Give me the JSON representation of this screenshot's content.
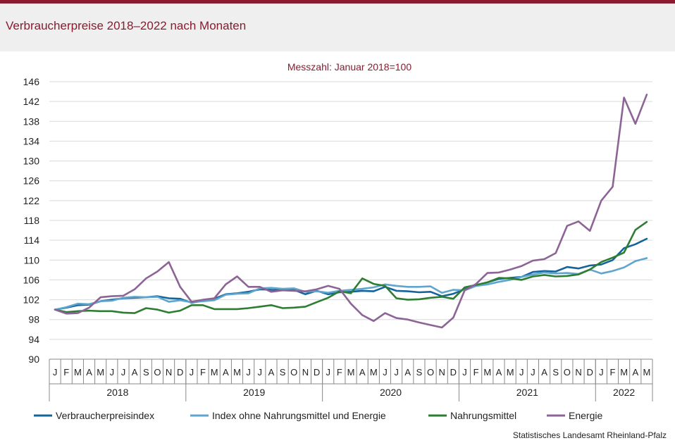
{
  "header": {
    "title": "Verbraucherpreise 2018–2022 nach Monaten"
  },
  "source": "Statistisches Landesamt Rheinland-Pfalz",
  "chart_data": {
    "type": "line",
    "subtitle": "Messzahl: Januar 2018=100",
    "ylim": [
      90,
      146
    ],
    "yticks": [
      "146",
      "142",
      "138",
      "134",
      "130",
      "126",
      "122",
      "118",
      "114",
      "110",
      "106",
      "102",
      "98",
      "94",
      "90"
    ],
    "month_letters": [
      "J",
      "F",
      "M",
      "A",
      "M",
      "J",
      "J",
      "A",
      "S",
      "O",
      "N",
      "D"
    ],
    "years": [
      {
        "label": "2018",
        "months": 12
      },
      {
        "label": "2019",
        "months": 12
      },
      {
        "label": "2020",
        "months": 12
      },
      {
        "label": "2021",
        "months": 12
      },
      {
        "label": "2022",
        "months": 5
      }
    ],
    "grid": true,
    "legend": "bottom",
    "series": [
      {
        "name": "Verbraucherpreisindex",
        "color": "#14649b",
        "values": [
          100.0,
          100.4,
          100.9,
          101.0,
          101.7,
          102.0,
          102.3,
          102.4,
          102.5,
          102.7,
          102.3,
          102.2,
          101.4,
          101.8,
          102.2,
          103.1,
          103.3,
          103.6,
          104.1,
          104.0,
          103.9,
          104.0,
          103.1,
          103.8,
          103.1,
          103.5,
          103.6,
          103.8,
          103.7,
          104.6,
          103.8,
          103.7,
          103.5,
          103.6,
          102.7,
          103.2,
          104.1,
          104.9,
          105.5,
          106.2,
          106.4,
          106.6,
          107.6,
          107.8,
          107.7,
          108.6,
          108.3,
          108.9,
          109.1,
          110.0,
          112.4,
          113.2,
          114.3
        ]
      },
      {
        "name": "Index ohne Nahrungsmittel und Energie",
        "color": "#5fa5cd",
        "values": [
          100.0,
          100.5,
          101.2,
          101.1,
          101.7,
          101.8,
          102.4,
          102.6,
          102.5,
          102.6,
          101.6,
          101.9,
          101.5,
          101.7,
          101.9,
          103.0,
          103.2,
          103.3,
          104.3,
          104.4,
          104.2,
          104.3,
          103.6,
          103.7,
          103.4,
          103.8,
          104.0,
          104.2,
          104.5,
          105.1,
          104.8,
          104.6,
          104.6,
          104.7,
          103.4,
          104.0,
          103.9,
          104.8,
          105.1,
          105.6,
          106.0,
          106.6,
          107.1,
          107.5,
          107.3,
          107.4,
          107.2,
          108.1,
          107.3,
          107.8,
          108.5,
          109.8,
          110.4
        ]
      },
      {
        "name": "Nahrungsmittel",
        "color": "#2d7d32",
        "values": [
          100.0,
          99.5,
          99.7,
          99.8,
          99.7,
          99.7,
          99.4,
          99.3,
          100.3,
          100.0,
          99.4,
          99.8,
          100.9,
          100.9,
          100.1,
          100.1,
          100.1,
          100.3,
          100.6,
          100.9,
          100.3,
          100.4,
          100.6,
          101.5,
          102.4,
          103.7,
          103.3,
          106.3,
          105.2,
          104.8,
          102.3,
          102.0,
          102.1,
          102.4,
          102.6,
          102.2,
          104.5,
          105.0,
          105.5,
          106.4,
          106.3,
          106.0,
          106.7,
          107.0,
          106.7,
          106.8,
          107.1,
          108.1,
          109.6,
          110.5,
          111.5,
          116.1,
          117.7
        ]
      },
      {
        "name": "Energie",
        "color": "#8c6496",
        "values": [
          100.0,
          99.2,
          99.3,
          100.4,
          102.5,
          102.7,
          102.8,
          104.1,
          106.3,
          107.7,
          109.6,
          104.6,
          101.6,
          102.0,
          102.3,
          105.1,
          106.7,
          104.6,
          104.6,
          103.6,
          103.9,
          103.8,
          103.7,
          104.1,
          104.8,
          104.2,
          101.2,
          98.9,
          97.7,
          99.3,
          98.3,
          98.0,
          97.4,
          96.9,
          96.4,
          98.4,
          103.9,
          105.2,
          107.4,
          107.5,
          108.1,
          108.8,
          109.9,
          110.2,
          111.4,
          116.9,
          117.8,
          115.9,
          122.0,
          124.8,
          142.8,
          137.5,
          143.4
        ]
      }
    ]
  }
}
